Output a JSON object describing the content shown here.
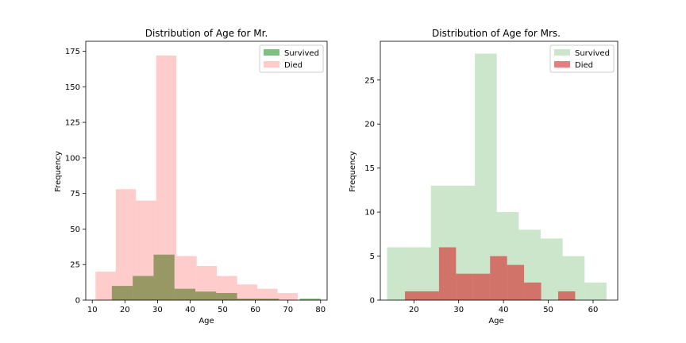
{
  "chart_data": [
    {
      "type": "histogram",
      "title": "Distribution of Age for Mr.",
      "xlabel": "Age",
      "ylabel": "Frequency",
      "xlim": [
        8,
        82
      ],
      "ylim": [
        0,
        182
      ],
      "xticks": [
        10,
        20,
        30,
        40,
        50,
        60,
        70,
        80
      ],
      "yticks": [
        0,
        25,
        50,
        75,
        100,
        125,
        150,
        175
      ],
      "legend_position": "top-right",
      "series": [
        {
          "name": "Survived",
          "color": "#008000",
          "alpha": 0.5,
          "bins": [
            {
              "x0": 16,
              "x1": 22.4,
              "count": 10
            },
            {
              "x0": 22.4,
              "x1": 28.8,
              "count": 17
            },
            {
              "x0": 28.8,
              "x1": 35.2,
              "count": 32
            },
            {
              "x0": 35.2,
              "x1": 41.6,
              "count": 8
            },
            {
              "x0": 41.6,
              "x1": 48,
              "count": 6
            },
            {
              "x0": 48,
              "x1": 54.4,
              "count": 5
            },
            {
              "x0": 54.4,
              "x1": 60.8,
              "count": 1
            },
            {
              "x0": 60.8,
              "x1": 67.2,
              "count": 1
            },
            {
              "x0": 67.2,
              "x1": 73.6,
              "count": 0
            },
            {
              "x0": 73.6,
              "x1": 80,
              "count": 1
            }
          ]
        },
        {
          "name": "Died",
          "color": "#ff0000",
          "alpha": 0.2,
          "bins": [
            {
              "x0": 11,
              "x1": 17.2,
              "count": 20
            },
            {
              "x0": 17.2,
              "x1": 23.4,
              "count": 78
            },
            {
              "x0": 23.4,
              "x1": 29.6,
              "count": 70
            },
            {
              "x0": 29.6,
              "x1": 35.8,
              "count": 172
            },
            {
              "x0": 35.8,
              "x1": 42,
              "count": 31
            },
            {
              "x0": 42,
              "x1": 48.2,
              "count": 24
            },
            {
              "x0": 48.2,
              "x1": 54.4,
              "count": 17
            },
            {
              "x0": 54.4,
              "x1": 60.6,
              "count": 11
            },
            {
              "x0": 60.6,
              "x1": 66.8,
              "count": 8
            },
            {
              "x0": 66.8,
              "x1": 73,
              "count": 5
            }
          ]
        }
      ]
    },
    {
      "type": "histogram",
      "title": "Distribution of Age for Mrs.",
      "xlabel": "Age",
      "ylabel": "Frequency",
      "xlim": [
        12.5,
        65.5
      ],
      "ylim": [
        0,
        29.4
      ],
      "xticks": [
        20,
        30,
        40,
        50,
        60
      ],
      "yticks": [
        0,
        5,
        10,
        15,
        20,
        25
      ],
      "legend_position": "top-right",
      "series": [
        {
          "name": "Survived",
          "color": "#008000",
          "alpha": 0.2,
          "bins": [
            {
              "x0": 14,
              "x1": 18.9,
              "count": 6
            },
            {
              "x0": 18.9,
              "x1": 23.8,
              "count": 6
            },
            {
              "x0": 23.8,
              "x1": 28.7,
              "count": 13
            },
            {
              "x0": 28.7,
              "x1": 33.6,
              "count": 13
            },
            {
              "x0": 33.6,
              "x1": 38.5,
              "count": 28
            },
            {
              "x0": 38.5,
              "x1": 43.4,
              "count": 10
            },
            {
              "x0": 43.4,
              "x1": 48.3,
              "count": 8
            },
            {
              "x0": 48.3,
              "x1": 53.2,
              "count": 7
            },
            {
              "x0": 53.2,
              "x1": 58.1,
              "count": 5
            },
            {
              "x0": 58.1,
              "x1": 63,
              "count": 2
            }
          ]
        },
        {
          "name": "Died",
          "color": "#d62728",
          "alpha": 0.6,
          "bins": [
            {
              "x0": 18,
              "x1": 21.8,
              "count": 1
            },
            {
              "x0": 21.8,
              "x1": 25.6,
              "count": 1
            },
            {
              "x0": 25.6,
              "x1": 29.4,
              "count": 6
            },
            {
              "x0": 29.4,
              "x1": 33.2,
              "count": 3
            },
            {
              "x0": 33.2,
              "x1": 37,
              "count": 3
            },
            {
              "x0": 37,
              "x1": 40.8,
              "count": 5
            },
            {
              "x0": 40.8,
              "x1": 44.6,
              "count": 4
            },
            {
              "x0": 44.6,
              "x1": 48.4,
              "count": 2
            },
            {
              "x0": 48.4,
              "x1": 52.2,
              "count": 0
            },
            {
              "x0": 52.2,
              "x1": 56,
              "count": 1
            }
          ]
        }
      ]
    }
  ]
}
